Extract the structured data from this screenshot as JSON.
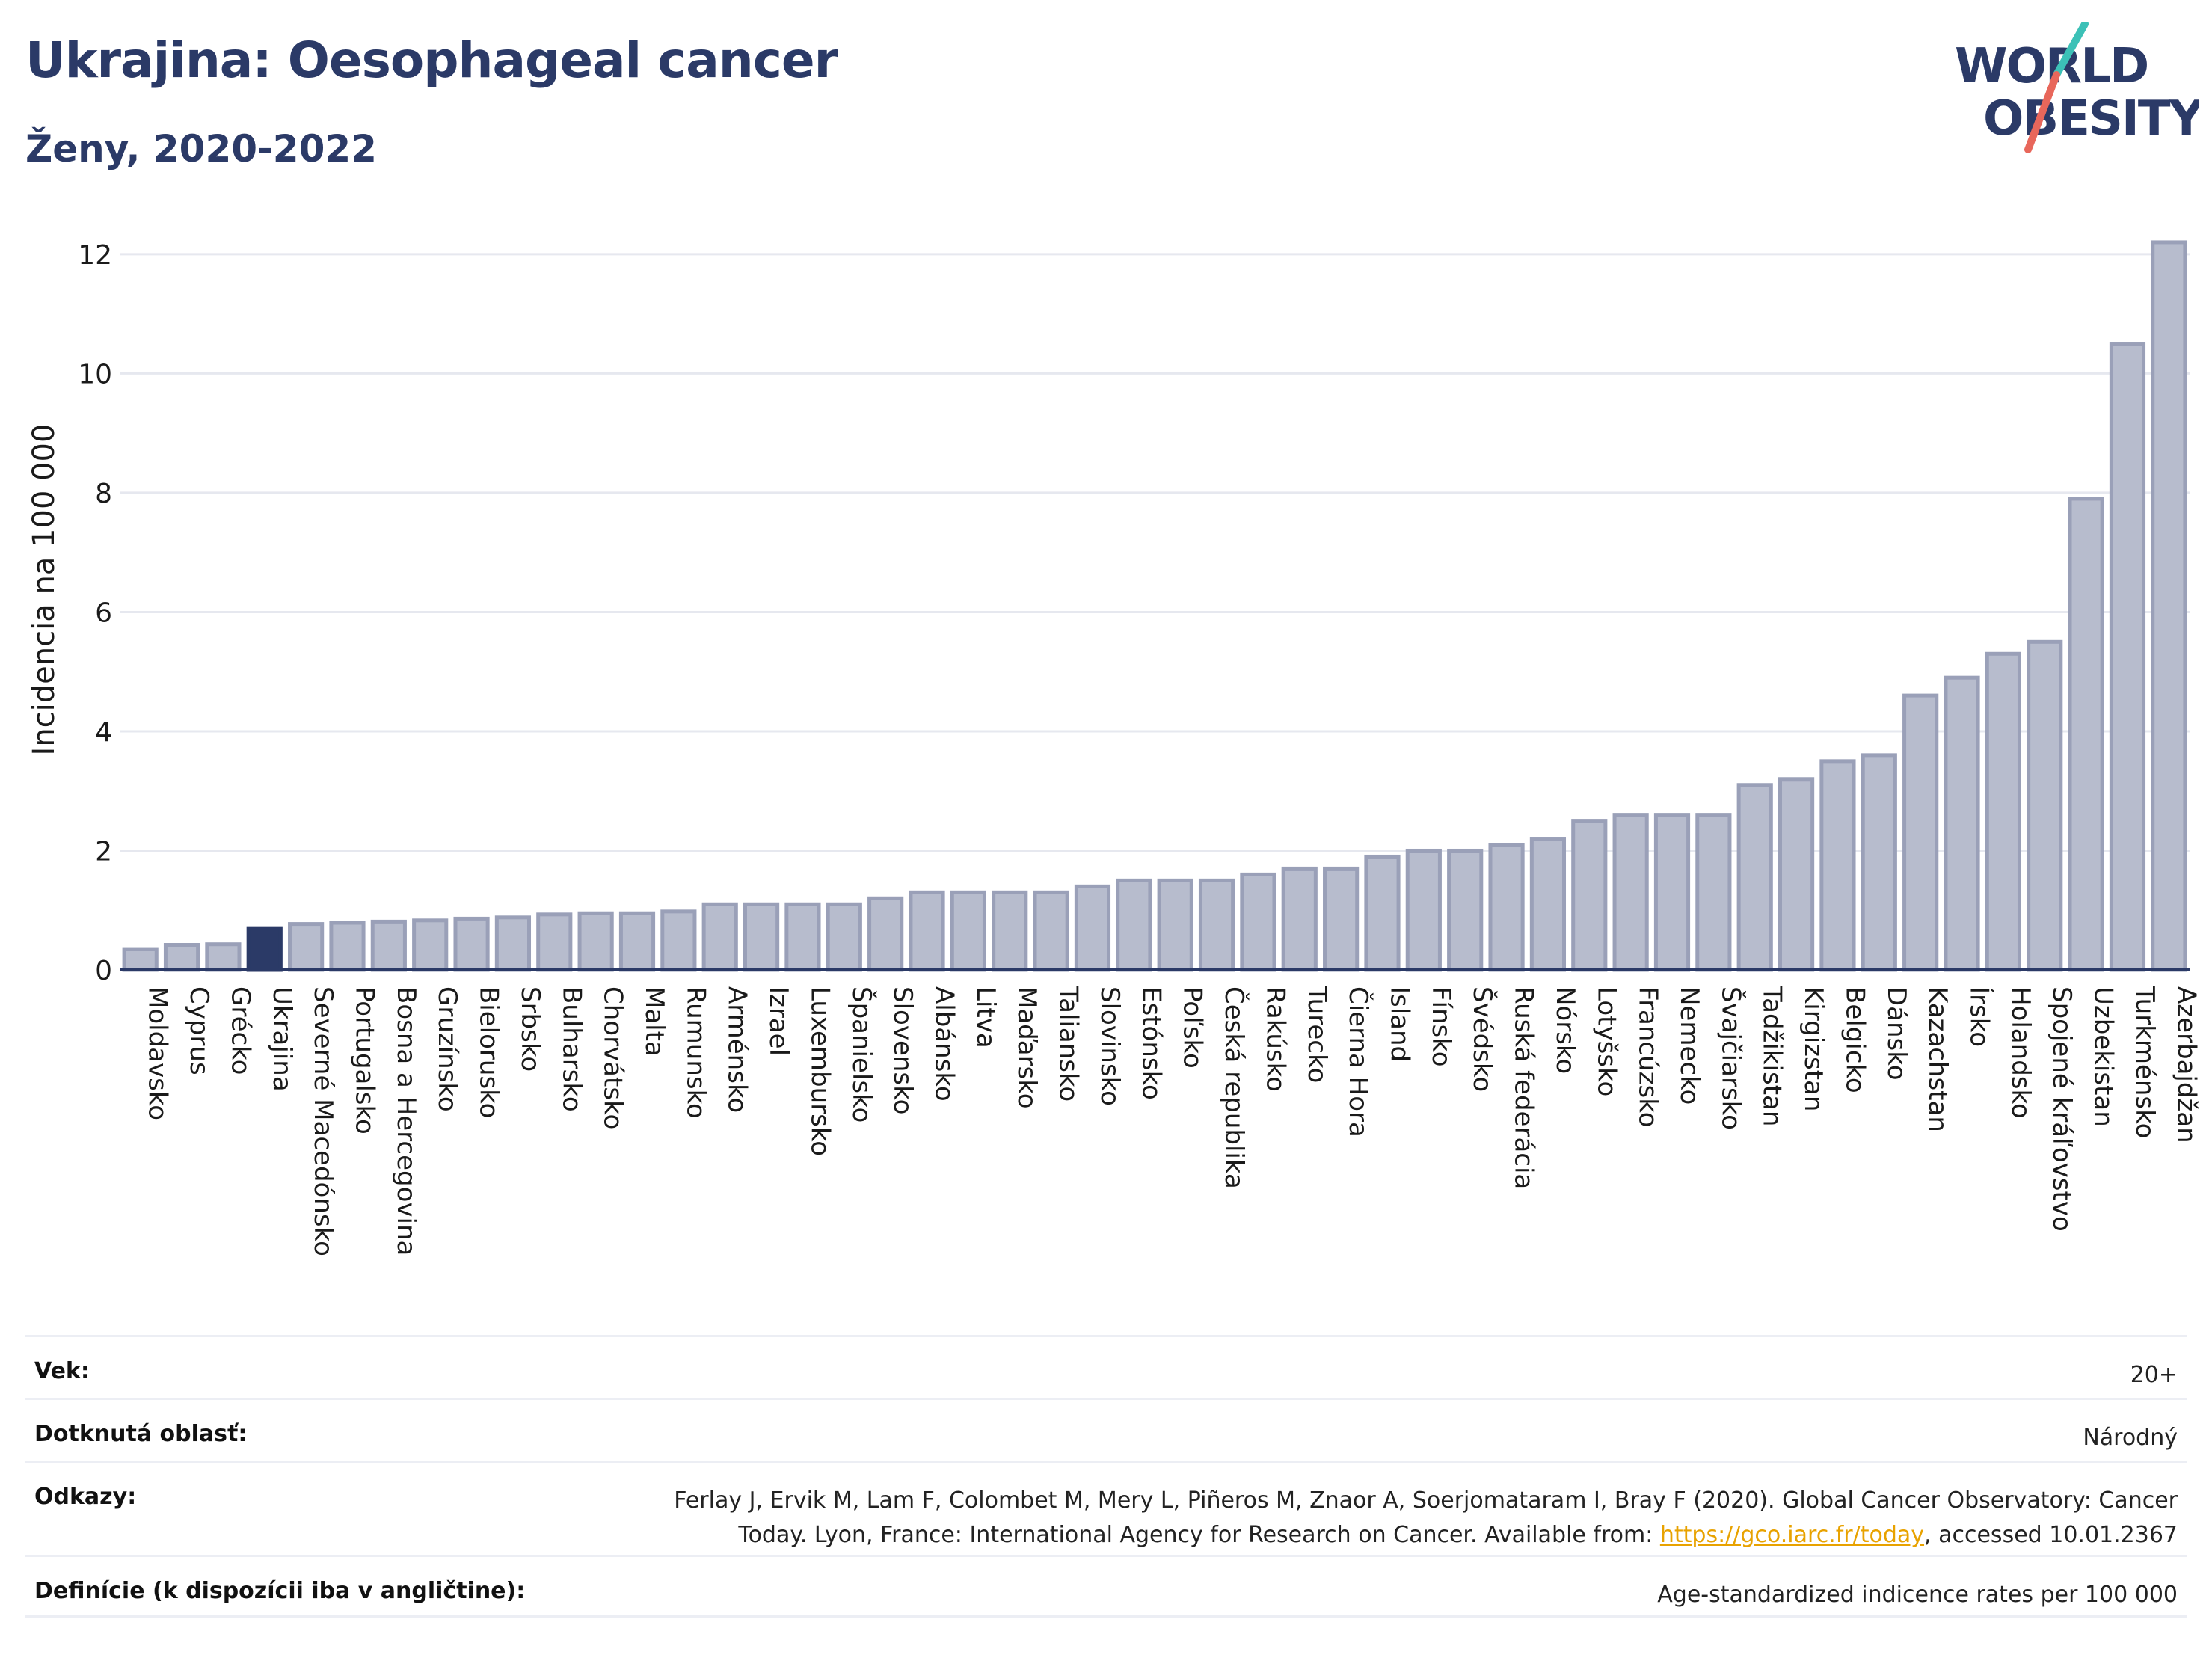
{
  "header": {
    "title": "Ukrajina: Oesophageal cancer",
    "subtitle": "Ženy, 2020-2022"
  },
  "logo": {
    "line1": "WORLD",
    "line2": "OBESITY",
    "accent_teal": "#3cc1b7",
    "accent_red": "#e8675b",
    "text_color": "#2b3a67"
  },
  "chart_data": {
    "type": "bar",
    "title": "Ukrajina: Oesophageal cancer",
    "subtitle": "Ženy, 2020-2022",
    "xlabel": "",
    "ylabel": "Incidencia na 100 000",
    "ylim": [
      0,
      12.5
    ],
    "yticks": [
      0,
      2,
      4,
      6,
      8,
      10,
      12
    ],
    "grid": true,
    "highlight": "Ukrajina",
    "colors": {
      "default": "#b7bccd",
      "default_edge": "#9aa0b8",
      "highlight": "#2b3a67",
      "axis": "#2b3a67",
      "grid": "#e6e8ef"
    },
    "categories": [
      "Moldavsko",
      "Cyprus",
      "Grécko",
      "Ukrajina",
      "Severné Macedónsko",
      "Portugalsko",
      "Bosna a Hercegovina",
      "Gruzínsko",
      "Bielorusko",
      "Srbsko",
      "Bulharsko",
      "Chorvátsko",
      "Malta",
      "Rumunsko",
      "Arménsko",
      "Izrael",
      "Luxembursko",
      "Španielsko",
      "Slovensko",
      "Albánsko",
      "Litva",
      "Maďarsko",
      "Taliansko",
      "Slovinsko",
      "Estónsko",
      "Poľsko",
      "Česká republika",
      "Rakúsko",
      "Turecko",
      "Čierna Hora",
      "Island",
      "Fínsko",
      "Švédsko",
      "Ruská federácia",
      "Nórsko",
      "Lotyšsko",
      "Francúzsko",
      "Nemecko",
      "Švajčiarsko",
      "Tadžikistan",
      "Kirgizstan",
      "Belgicko",
      "Dánsko",
      "Kazachstan",
      "Írsko",
      "Holandsko",
      "Spojené kráľovstvo",
      "Uzbekistan",
      "Turkménsko",
      "Azerbajdžan"
    ],
    "values": [
      0.35,
      0.42,
      0.43,
      0.7,
      0.77,
      0.79,
      0.81,
      0.83,
      0.86,
      0.88,
      0.93,
      0.95,
      0.95,
      0.98,
      1.1,
      1.1,
      1.1,
      1.1,
      1.2,
      1.3,
      1.3,
      1.3,
      1.3,
      1.4,
      1.5,
      1.5,
      1.5,
      1.6,
      1.7,
      1.7,
      1.9,
      2.0,
      2.0,
      2.1,
      2.2,
      2.5,
      2.6,
      2.6,
      2.6,
      3.1,
      3.2,
      3.5,
      3.6,
      4.6,
      4.9,
      5.3,
      5.5,
      7.9,
      10.5,
      12.2
    ]
  },
  "info": [
    {
      "label": "Vek:",
      "value": "20+"
    },
    {
      "label": "Dotknutá oblasť:",
      "value": "Národný"
    },
    {
      "label": "Odkazy:",
      "value_line1": "Ferlay J, Ervik M, Lam F, Colombet M, Mery L, Piñeros M, Znaor A, Soerjomataram I, Bray F (2020). Global Cancer Observatory: Cancer",
      "value_line2_pre": "Today. Lyon, France: International Agency for Research on Cancer. Available from: ",
      "link": "https://gco.iarc.fr/today",
      "value_line2_post": ", accessed 10.01.2367"
    },
    {
      "label": "Definície (k dispozícii iba v angličtine):",
      "value": "Age-standardized indicence rates per 100 000"
    }
  ]
}
